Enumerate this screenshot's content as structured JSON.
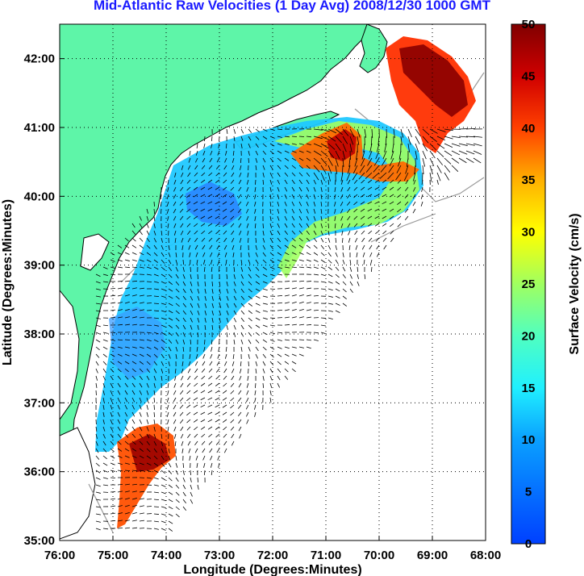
{
  "title": "Mid-Atlantic Raw Velocities (1 Day Avg) 2008/12/30 1000 GMT",
  "map": {
    "xlabel": "Longitude (Degrees:Minutes)",
    "ylabel": "Latitude (Degrees:Minutes)",
    "lon_ticks": [
      "76:00",
      "75:00",
      "74:00",
      "73:00",
      "72:00",
      "71:00",
      "70:00",
      "69:00",
      "68:00"
    ],
    "lat_ticks": [
      "42:00",
      "41:00",
      "40:00",
      "39:00",
      "38:00",
      "37:00",
      "36:00",
      "35:00"
    ],
    "lon_range": [
      -76,
      -68
    ],
    "lat_range": [
      35,
      42.5
    ],
    "grid": "dotted",
    "land_color": "#5ef5a8",
    "ocean_color": "#ffffff"
  },
  "colorbar": {
    "label": "Surface Velocity (cm/s)",
    "ticks": [
      "50",
      "45",
      "40",
      "35",
      "30",
      "25",
      "20",
      "15",
      "10",
      "5",
      "0"
    ],
    "range": [
      0,
      50
    ],
    "colormap": "jet"
  }
}
